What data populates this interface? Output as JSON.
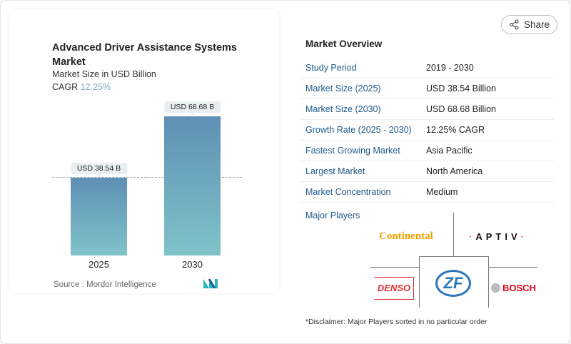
{
  "chart": {
    "title": "Advanced Driver Assistance Systems Market",
    "subtitle": "Market Size in USD Billion",
    "cagr_label": "CAGR",
    "cagr_value": "12.25%",
    "source": "Source :  Mordor Intelligence",
    "logo": "Mordor Intelligence logo",
    "colors": {
      "bar_top": "#5f8fb5",
      "bar_bottom": "#7fc3c9",
      "cagr": "#7fa8b8"
    }
  },
  "chart_data": {
    "type": "bar",
    "categories": [
      "2025",
      "2030"
    ],
    "values": [
      38.54,
      68.68
    ],
    "data_labels": [
      "USD 38.54 B",
      "USD 68.68 B"
    ],
    "ylabel": "Market Size in USD Billion",
    "grid": false,
    "reference_line": 38.54
  },
  "share": {
    "label": "Share",
    "icon": "share-icon"
  },
  "overview": {
    "title": "Market Overview",
    "rows": [
      {
        "k": "Study Period",
        "v": "2019 - 2030"
      },
      {
        "k": "Market Size (2025)",
        "v": "USD 38.54 Billion"
      },
      {
        "k": "Market Size (2030)",
        "v": "USD 68.68 Billion"
      },
      {
        "k": "Growth Rate (2025 - 2030)",
        "v": "12.25% CAGR"
      },
      {
        "k": "Fastest Growing Market",
        "v": "Asia Pacific"
      },
      {
        "k": "Largest Market",
        "v": "North America"
      },
      {
        "k": "Market Concentration",
        "v": "Medium"
      }
    ],
    "players_title": "Major Players",
    "players": [
      "Continental",
      "APTIV",
      "DENSO",
      "ZF",
      "BOSCH"
    ],
    "disclaimer": "*Disclaimer: Major Players sorted in no particular order"
  }
}
